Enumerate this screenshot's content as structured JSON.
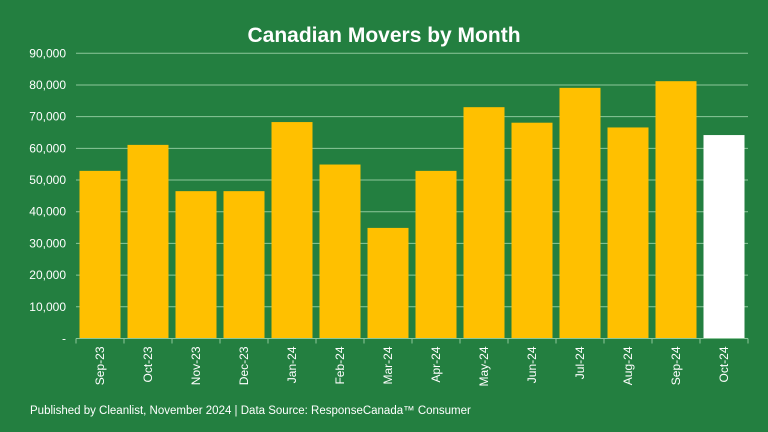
{
  "chart_data": {
    "type": "bar",
    "title": "Canadian Movers by Month",
    "xlabel": "",
    "ylabel": "",
    "ylim": [
      0,
      90000
    ],
    "yticks": [
      0,
      10000,
      20000,
      30000,
      40000,
      50000,
      60000,
      70000,
      80000,
      90000
    ],
    "ytick_labels": [
      "-",
      "10,000",
      "20,000",
      "30,000",
      "40,000",
      "50,000",
      "60,000",
      "70,000",
      "80,000",
      "90,000"
    ],
    "grid": true,
    "categories": [
      "Sep-23",
      "Oct-23",
      "Nov-23",
      "Dec-23",
      "Jan-24",
      "Feb-24",
      "Mar-24",
      "Apr-24",
      "May-24",
      "Jun-24",
      "Jul-24",
      "Aug-24",
      "Sep-24",
      "Oct-24"
    ],
    "values": [
      52900,
      61100,
      46500,
      46500,
      68300,
      54900,
      34900,
      52900,
      73000,
      68100,
      79100,
      66600,
      81200,
      64200
    ],
    "highlight_index": 13
  },
  "footer": "Published by Cleanlist, November 2024 | Data Source: ResponseCanada™ Consumer",
  "colors": {
    "background": "#237f40",
    "bar": "#ffc000",
    "highlight": "#ffffff",
    "grid": "#8cc79a"
  }
}
